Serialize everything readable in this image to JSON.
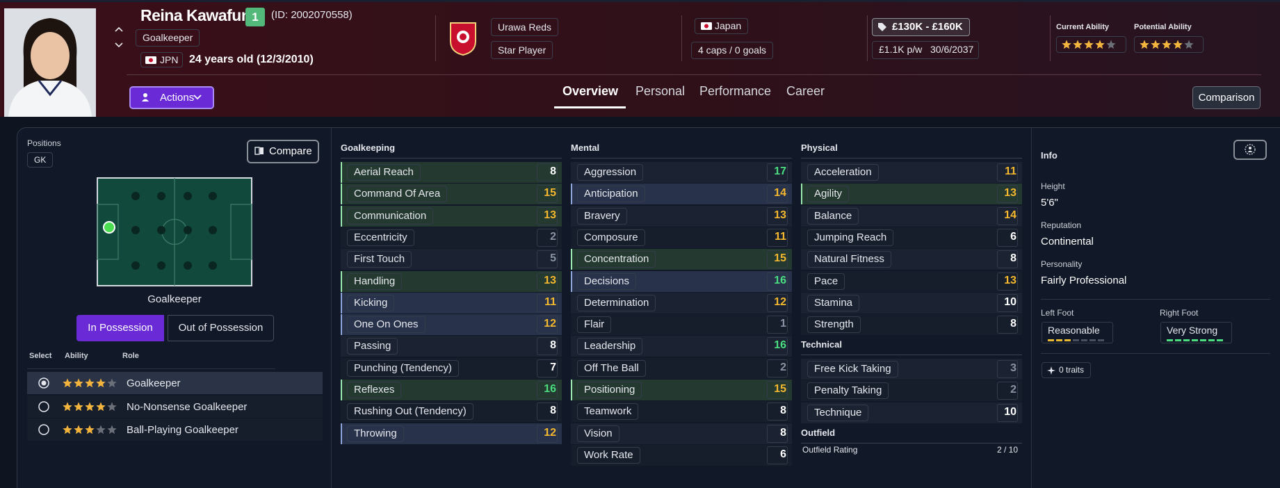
{
  "header": {
    "name": "Reina Kawafune",
    "number": "1",
    "id": "(ID: 2002070558)",
    "position": "Goalkeeper",
    "nation_code": "JPN",
    "age": "24 years old (12/3/2010)",
    "club": "Urawa Reds",
    "status": "Star Player",
    "country": "Japan",
    "caps": "4 caps / 0 goals",
    "value": "£130K - £160K",
    "wage": "£1.1K p/w",
    "contract": "30/6/2037",
    "current_ability": {
      "label": "Current Ability",
      "stars": 4.5
    },
    "potential_ability": {
      "label": "Potential Ability",
      "stars": 4.5
    }
  },
  "nav": {
    "actions": "Actions",
    "tabs": [
      "Overview",
      "Personal",
      "Performance",
      "Career"
    ],
    "comparison": "Comparison"
  },
  "positions": {
    "label": "Positions",
    "code": "GK",
    "compare": "Compare",
    "pitch_label": "Goalkeeper",
    "toggles": [
      "In Possession",
      "Out of Possession"
    ],
    "columns": [
      "Select",
      "Ability",
      "Role"
    ],
    "roles": [
      {
        "name": "Goalkeeper",
        "stars": 4.5,
        "selected": true
      },
      {
        "name": "No-Nonsense Goalkeeper",
        "stars": 4
      },
      {
        "name": "Ball-Playing Goalkeeper",
        "stars": 3.5
      }
    ]
  },
  "attributes": [
    {
      "title": "Goalkeeping",
      "items": [
        {
          "name": "Aerial Reach",
          "value": 8,
          "highlight": "key"
        },
        {
          "name": "Command Of Area",
          "value": 15,
          "highlight": "key"
        },
        {
          "name": "Communication",
          "value": 13,
          "highlight": "key"
        },
        {
          "name": "Eccentricity",
          "value": 2
        },
        {
          "name": "First Touch",
          "value": 5
        },
        {
          "name": "Handling",
          "value": 13,
          "highlight": "key"
        },
        {
          "name": "Kicking",
          "value": 11,
          "highlight": "preferred"
        },
        {
          "name": "One On Ones",
          "value": 12,
          "highlight": "preferred"
        },
        {
          "name": "Passing",
          "value": 8
        },
        {
          "name": "Punching (Tendency)",
          "value": 7
        },
        {
          "name": "Reflexes",
          "value": 16,
          "highlight": "key"
        },
        {
          "name": "Rushing Out (Tendency)",
          "value": 8
        },
        {
          "name": "Throwing",
          "value": 12,
          "highlight": "preferred"
        }
      ]
    },
    {
      "title": "Mental",
      "items": [
        {
          "name": "Aggression",
          "value": 17
        },
        {
          "name": "Anticipation",
          "value": 14,
          "highlight": "preferred"
        },
        {
          "name": "Bravery",
          "value": 13
        },
        {
          "name": "Composure",
          "value": 11
        },
        {
          "name": "Concentration",
          "value": 15,
          "highlight": "key"
        },
        {
          "name": "Decisions",
          "value": 16,
          "highlight": "preferred"
        },
        {
          "name": "Determination",
          "value": 12
        },
        {
          "name": "Flair",
          "value": 1
        },
        {
          "name": "Leadership",
          "value": 16
        },
        {
          "name": "Off The Ball",
          "value": 2
        },
        {
          "name": "Positioning",
          "value": 15,
          "highlight": "key"
        },
        {
          "name": "Teamwork",
          "value": 8
        },
        {
          "name": "Vision",
          "value": 8
        },
        {
          "name": "Work Rate",
          "value": 6
        }
      ]
    },
    {
      "title": "Physical",
      "items": [
        {
          "name": "Acceleration",
          "value": 11
        },
        {
          "name": "Agility",
          "value": 13,
          "highlight": "key"
        },
        {
          "name": "Balance",
          "value": 14
        },
        {
          "name": "Jumping Reach",
          "value": 6
        },
        {
          "name": "Natural Fitness",
          "value": 8
        },
        {
          "name": "Pace",
          "value": 13
        },
        {
          "name": "Stamina",
          "value": 10
        },
        {
          "name": "Strength",
          "value": 8
        }
      ]
    },
    {
      "title": "Technical",
      "items": [
        {
          "name": "Free Kick Taking",
          "value": 3
        },
        {
          "name": "Penalty Taking",
          "value": 2
        },
        {
          "name": "Technique",
          "value": 10
        }
      ]
    },
    {
      "title": "Outfield",
      "items": [
        {
          "name": "Outfield Rating",
          "value": "2 / 10"
        }
      ]
    }
  ],
  "info": {
    "title": "Info",
    "fields": [
      {
        "label": "Height",
        "value": "5'6\""
      },
      {
        "label": "Reputation",
        "value": "Continental"
      },
      {
        "label": "Personality",
        "value": "Fairly Professional"
      }
    ],
    "feet": [
      {
        "label": "Left Foot",
        "value": "Reasonable",
        "level": 3,
        "color": "#e8b931"
      },
      {
        "label": "Right Foot",
        "value": "Very Strong",
        "level": 7,
        "color": "#4ade80"
      }
    ],
    "foot_max": 7,
    "traits": "0 traits"
  }
}
